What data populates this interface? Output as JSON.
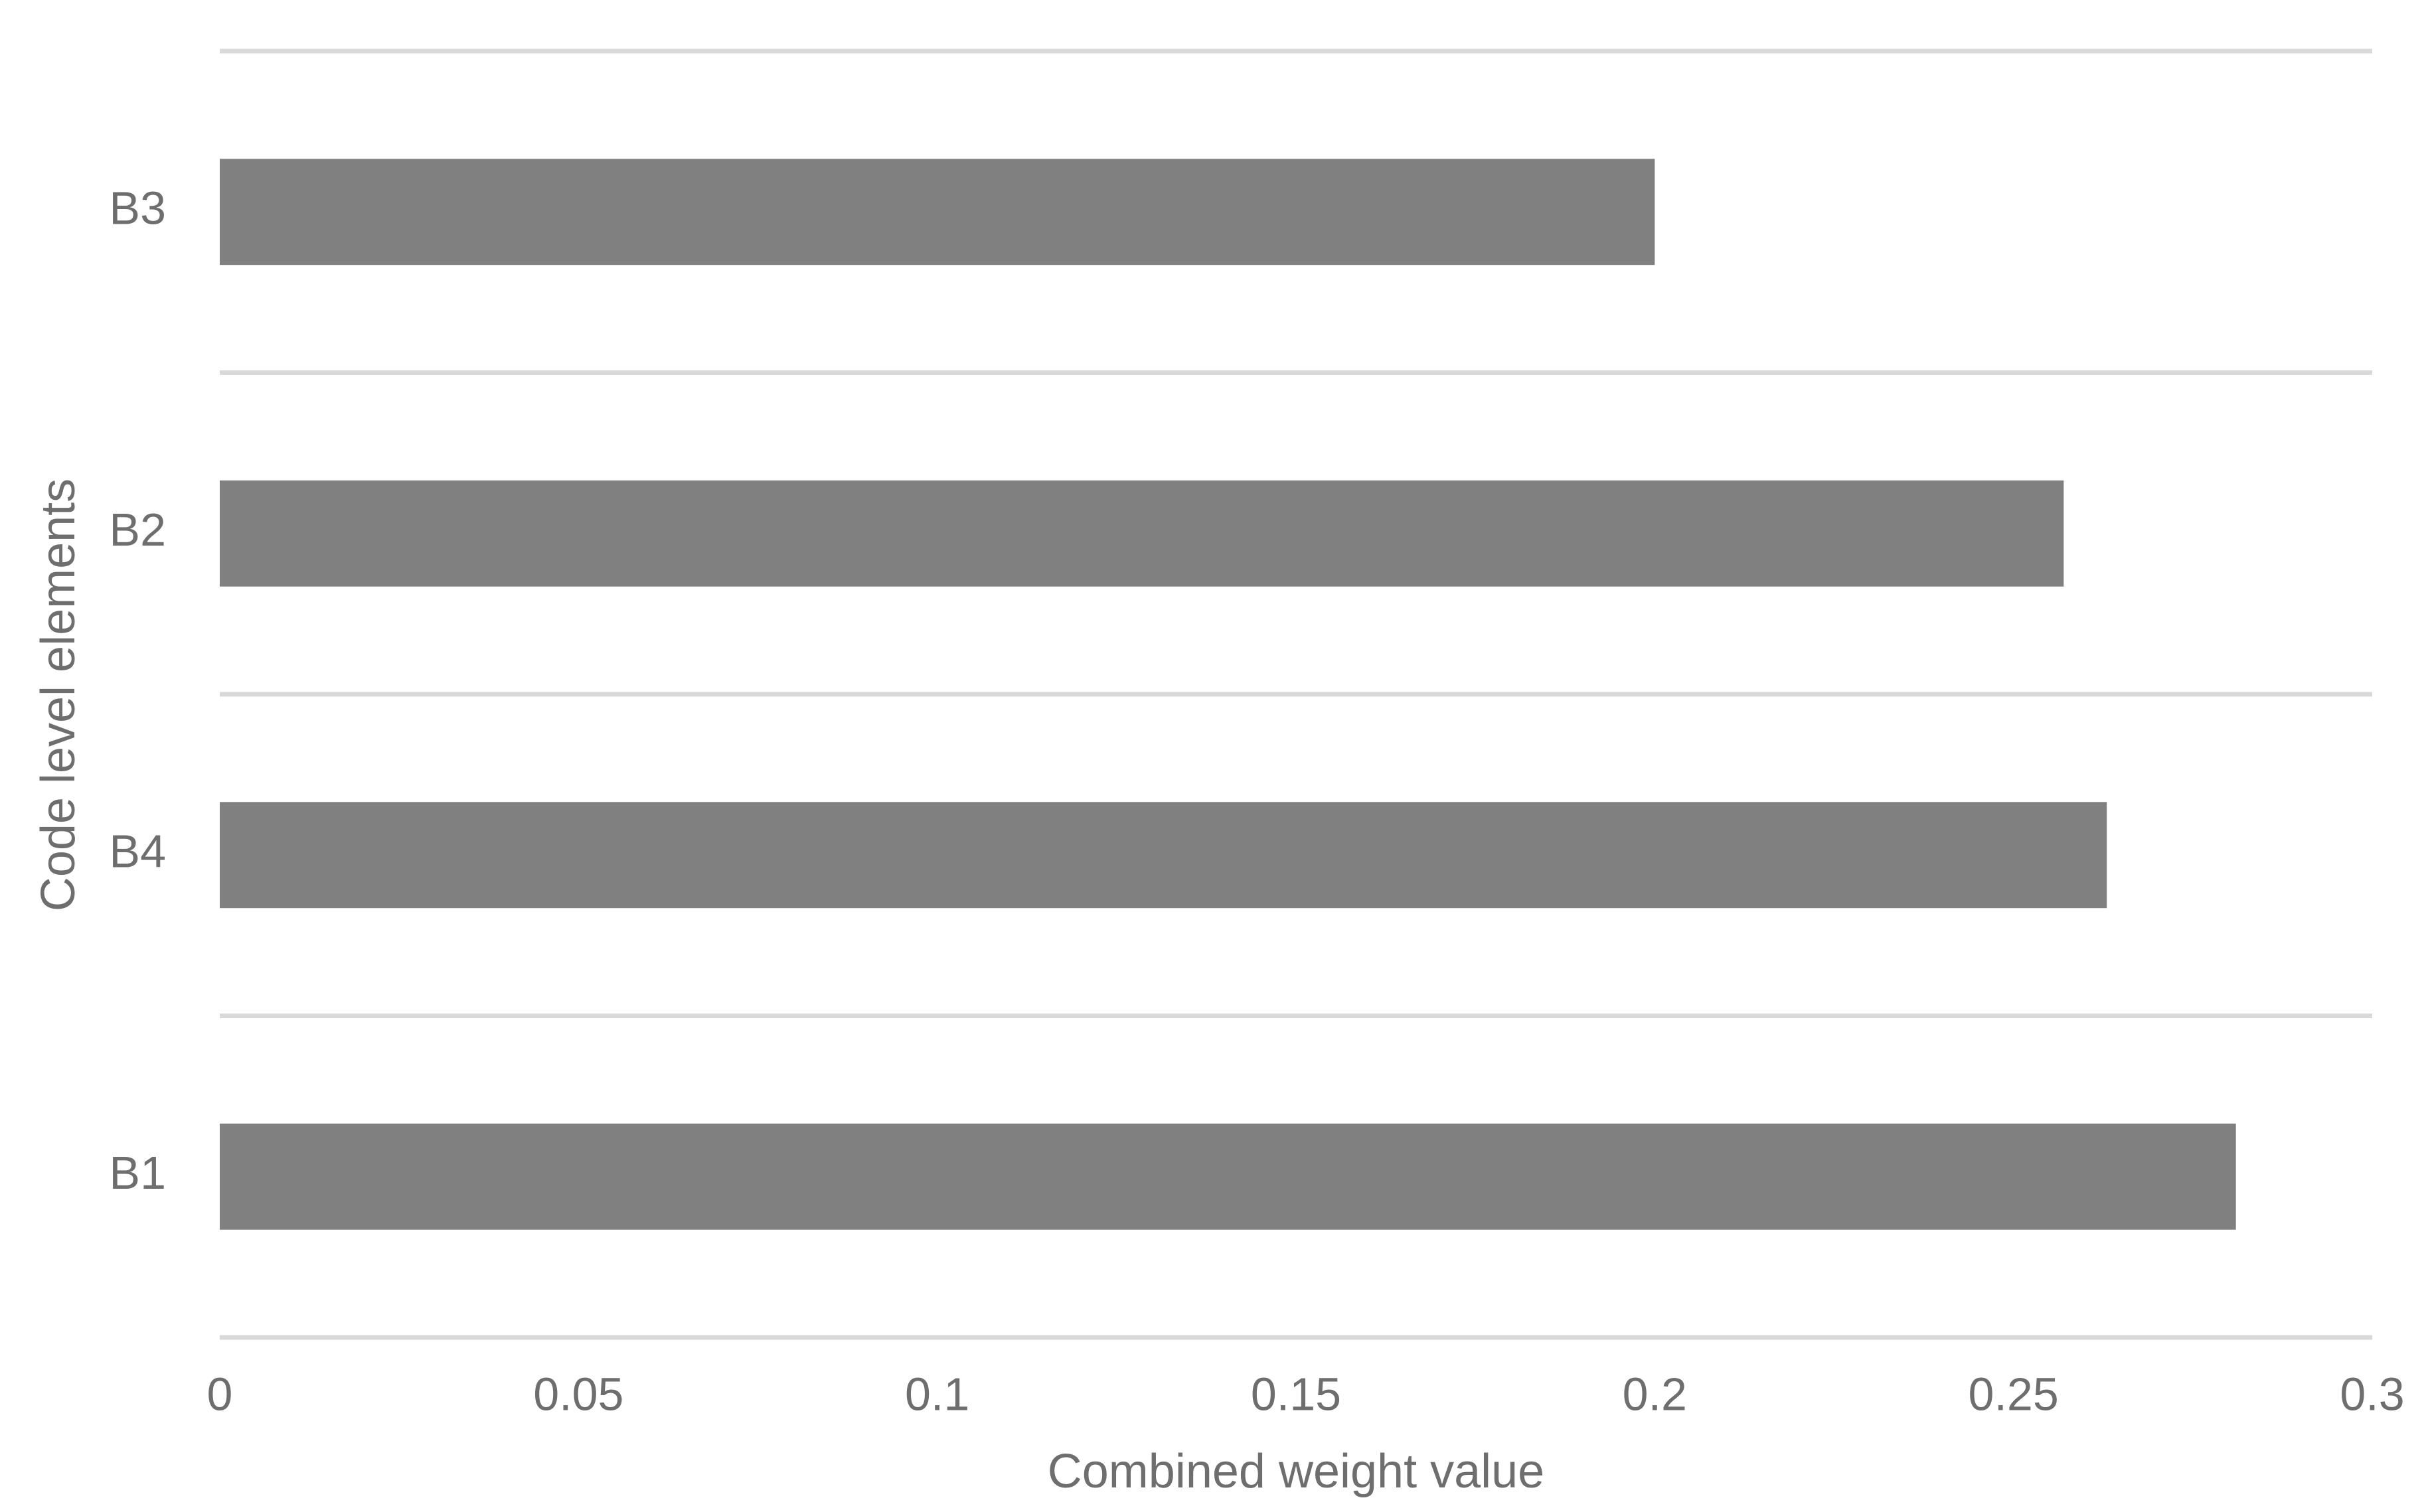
{
  "chart_data": {
    "type": "bar",
    "orientation": "horizontal",
    "categories": [
      "B1",
      "B4",
      "B2",
      "B3"
    ],
    "values": [
      0.281,
      0.263,
      0.257,
      0.2
    ],
    "color": "#808080",
    "xlim": [
      0,
      0.3
    ],
    "xticks": [
      0,
      0.05,
      0.1,
      0.15,
      0.2,
      0.25,
      0.3
    ],
    "xlabel": "Combined weight value",
    "ylabel": "Code level elements",
    "grid": true
  }
}
